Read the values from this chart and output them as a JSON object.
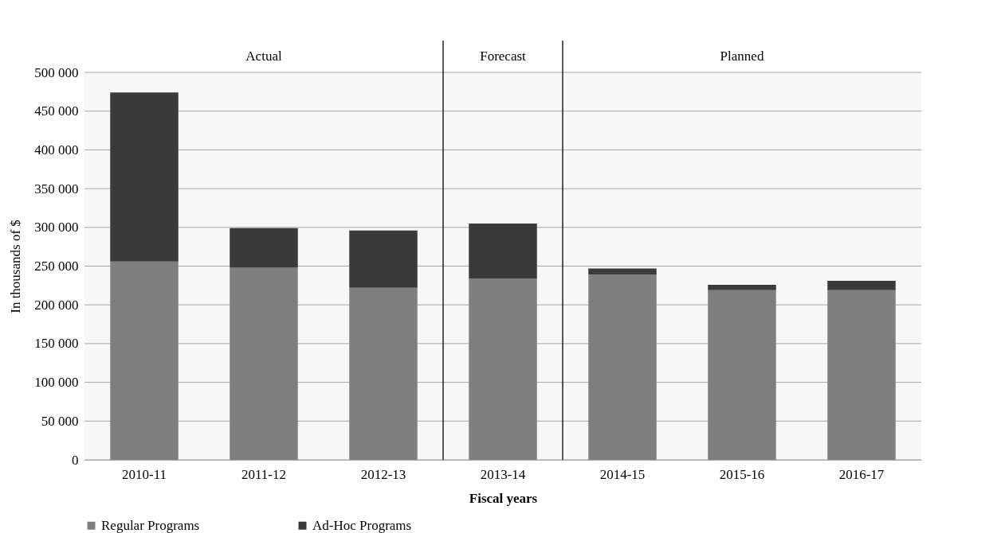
{
  "chart_data": {
    "type": "bar",
    "stacked": true,
    "xlabel": "Fiscal years",
    "ylabel": "In thousands of $",
    "categories": [
      "2010-11",
      "2011-12",
      "2012-13",
      "2013-14",
      "2014-15",
      "2015-16",
      "2016-17"
    ],
    "series": [
      {
        "name": "Regular Programs",
        "color": "#7f7f7f",
        "values": [
          256000,
          248000,
          222000,
          234000,
          239000,
          219000,
          219000
        ]
      },
      {
        "name": "Ad-Hoc Programs",
        "color": "#3a3a3a",
        "values": [
          218000,
          51000,
          74000,
          71000,
          8000,
          7000,
          12000
        ]
      }
    ],
    "ylim": [
      0,
      500000
    ],
    "yticks": [
      0,
      50000,
      100000,
      150000,
      200000,
      250000,
      300000,
      350000,
      400000,
      450000,
      500000
    ],
    "grid": "y",
    "legend": "bottom",
    "bands": [
      {
        "axis": "x",
        "from": "2010-11",
        "to": "2012-13",
        "label": "Actual",
        "color": "#f7f7f7"
      },
      {
        "axis": "x",
        "from": "2013-14",
        "to": "2013-14",
        "label": "Forecast",
        "color": "#f7f7f7"
      },
      {
        "axis": "x",
        "from": "2014-15",
        "to": "2016-17",
        "label": "Planned",
        "color": "#f7f7f7"
      }
    ]
  }
}
